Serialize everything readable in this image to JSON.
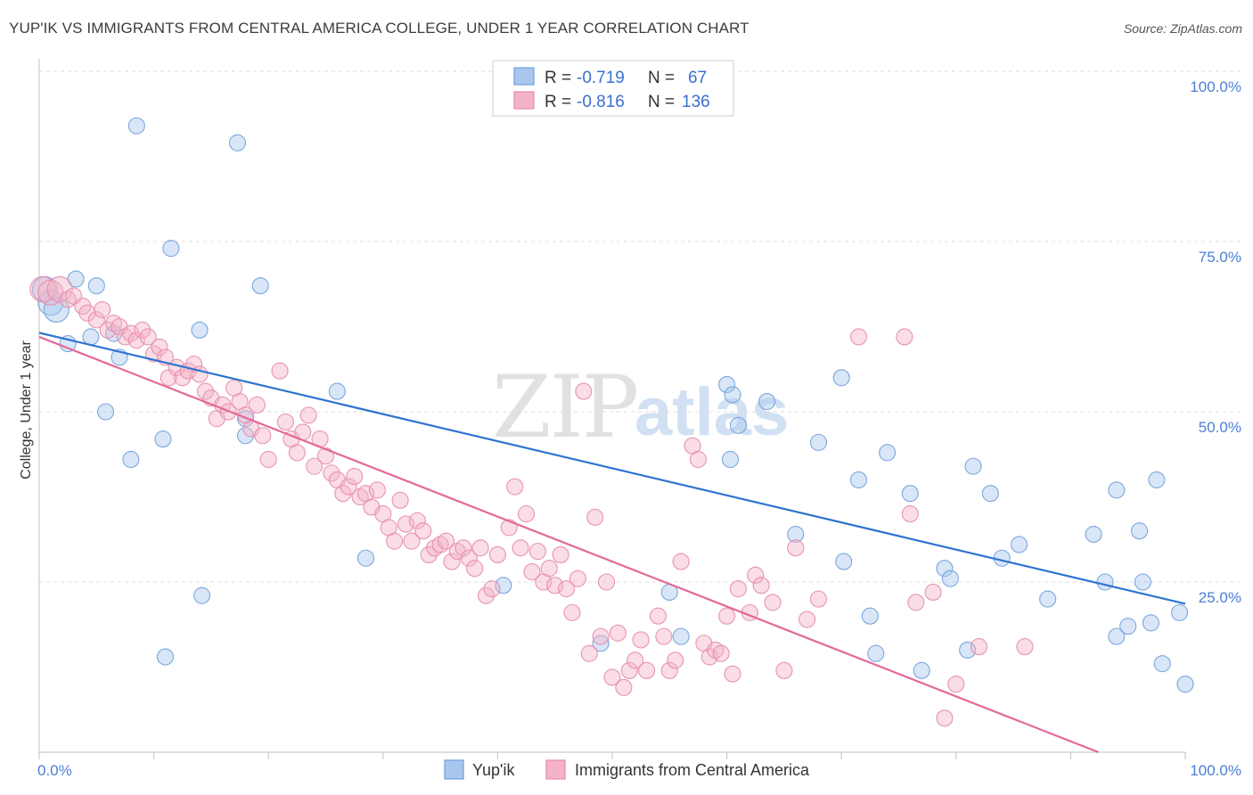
{
  "header": {
    "title": "YUP'IK VS IMMIGRANTS FROM CENTRAL AMERICA COLLEGE, UNDER 1 YEAR CORRELATION CHART",
    "source": "Source: ZipAtlas.com"
  },
  "watermark": {
    "part1": "ZIP",
    "part2": "atlas"
  },
  "colors": {
    "blue_fill": "#a9c7ee",
    "blue_stroke": "#6f9fd9",
    "blue_line": "#2f74d0",
    "pink_fill": "#f5b3c8",
    "pink_stroke": "#e58aa9",
    "pink_line": "#e3689a",
    "grid": "#dddddd",
    "axis_text": "#4a7fd4"
  },
  "legend": {
    "rows": [
      {
        "r_label": "R =",
        "r_value": "-0.719",
        "n_label": "N =",
        "n_value": "67"
      },
      {
        "r_label": "R =",
        "r_value": "-0.816",
        "n_label": "N =",
        "n_value": "136"
      }
    ]
  },
  "chart_data": {
    "type": "scatter",
    "ylabel": "College, Under 1 year",
    "xlim": [
      0,
      100
    ],
    "ylim": [
      0,
      100
    ],
    "y_ticks": [
      {
        "value": 100,
        "label": "100.0%"
      },
      {
        "value": 75,
        "label": "75.0%"
      },
      {
        "value": 50,
        "label": "50.0%"
      },
      {
        "value": 25,
        "label": "25.0%"
      }
    ],
    "x_tick_labels": [
      {
        "value": 0,
        "label": "0.0%"
      },
      {
        "value": 100,
        "label": "100.0%"
      }
    ],
    "x_minor_ticks": [
      0,
      10,
      20,
      30,
      40,
      50,
      60,
      70,
      80,
      90,
      100
    ],
    "legend_position": "bottom",
    "series": [
      {
        "name": "Yup'ik",
        "color": "#a9c7ee",
        "trend": {
          "x": [
            0,
            100
          ],
          "y": [
            61.6,
            21.8
          ]
        },
        "points": [
          [
            0.5,
            68
          ],
          [
            1,
            66
          ],
          [
            3.2,
            69.5
          ],
          [
            5,
            68.5
          ],
          [
            2.5,
            60
          ],
          [
            1.5,
            65
          ],
          [
            4.5,
            61
          ],
          [
            6.5,
            61.5
          ],
          [
            8.5,
            92
          ],
          [
            7,
            58
          ],
          [
            5.8,
            50
          ],
          [
            8,
            43
          ],
          [
            10.8,
            46
          ],
          [
            11.5,
            74
          ],
          [
            11,
            14
          ],
          [
            14,
            62
          ],
          [
            14.2,
            23
          ],
          [
            17.3,
            89.5
          ],
          [
            18,
            49
          ],
          [
            18,
            46.5
          ],
          [
            19.3,
            68.5
          ],
          [
            26,
            53
          ],
          [
            28.5,
            28.5
          ],
          [
            40.5,
            24.5
          ],
          [
            49,
            16
          ],
          [
            55,
            23.5
          ],
          [
            56,
            17
          ],
          [
            60,
            54
          ],
          [
            60.3,
            43
          ],
          [
            60.5,
            52.5
          ],
          [
            61,
            48
          ],
          [
            63.5,
            51.5
          ],
          [
            66,
            32
          ],
          [
            68,
            45.5
          ],
          [
            70,
            55
          ],
          [
            70.2,
            28
          ],
          [
            71.5,
            40
          ],
          [
            72.5,
            20
          ],
          [
            73,
            14.5
          ],
          [
            74,
            44
          ],
          [
            76,
            38
          ],
          [
            77,
            12
          ],
          [
            79,
            27
          ],
          [
            79.5,
            25.5
          ],
          [
            81,
            15
          ],
          [
            81.5,
            42
          ],
          [
            83,
            38
          ],
          [
            84,
            28.5
          ],
          [
            85.5,
            30.5
          ],
          [
            88,
            22.5
          ],
          [
            92,
            32
          ],
          [
            93,
            25
          ],
          [
            94,
            38.5
          ],
          [
            94,
            17
          ],
          [
            95,
            18.5
          ],
          [
            96,
            32.5
          ],
          [
            96.3,
            25
          ],
          [
            97,
            19
          ],
          [
            97.5,
            40
          ],
          [
            98,
            13
          ],
          [
            99.5,
            20.5
          ],
          [
            100,
            10
          ]
        ]
      },
      {
        "name": "Immigrants from Central America",
        "color": "#f5b3c8",
        "trend": {
          "x": [
            0,
            100
          ],
          "y": [
            61.0,
            -5.0
          ]
        },
        "points": [
          [
            0.3,
            68
          ],
          [
            1,
            67.5
          ],
          [
            1.8,
            68
          ],
          [
            2.5,
            66.5
          ],
          [
            3,
            67
          ],
          [
            3.8,
            65.5
          ],
          [
            4.2,
            64.5
          ],
          [
            5,
            63.5
          ],
          [
            5.5,
            65
          ],
          [
            6,
            62
          ],
          [
            6.5,
            63
          ],
          [
            7,
            62.5
          ],
          [
            7.5,
            61
          ],
          [
            8,
            61.5
          ],
          [
            8.5,
            60.5
          ],
          [
            9,
            62
          ],
          [
            9.5,
            61
          ],
          [
            10,
            58.5
          ],
          [
            10.5,
            59.5
          ],
          [
            11,
            58
          ],
          [
            11.3,
            55
          ],
          [
            12,
            56.5
          ],
          [
            12.5,
            55
          ],
          [
            13,
            56
          ],
          [
            13.5,
            57
          ],
          [
            14,
            55.5
          ],
          [
            14.5,
            53
          ],
          [
            15,
            52
          ],
          [
            15.5,
            49
          ],
          [
            16,
            51
          ],
          [
            16.5,
            50
          ],
          [
            17,
            53.5
          ],
          [
            17.5,
            51.5
          ],
          [
            18,
            49.5
          ],
          [
            18.5,
            47.5
          ],
          [
            19,
            51
          ],
          [
            19.5,
            46.5
          ],
          [
            20,
            43
          ],
          [
            21,
            56
          ],
          [
            21.5,
            48.5
          ],
          [
            22,
            46
          ],
          [
            22.5,
            44
          ],
          [
            23,
            47
          ],
          [
            23.5,
            49.5
          ],
          [
            24,
            42
          ],
          [
            24.5,
            46
          ],
          [
            25,
            43.5
          ],
          [
            25.5,
            41
          ],
          [
            26,
            40
          ],
          [
            26.5,
            38
          ],
          [
            27,
            39
          ],
          [
            27.5,
            40.5
          ],
          [
            28,
            37.5
          ],
          [
            28.5,
            38
          ],
          [
            29,
            36
          ],
          [
            29.5,
            38.5
          ],
          [
            30,
            35
          ],
          [
            30.5,
            33
          ],
          [
            31,
            31
          ],
          [
            31.5,
            37
          ],
          [
            32,
            33.5
          ],
          [
            32.5,
            31
          ],
          [
            33,
            34
          ],
          [
            33.5,
            32.5
          ],
          [
            34,
            29
          ],
          [
            34.5,
            30
          ],
          [
            35,
            30.5
          ],
          [
            35.5,
            31
          ],
          [
            36,
            28
          ],
          [
            36.5,
            29.5
          ],
          [
            37,
            30
          ],
          [
            37.5,
            28.5
          ],
          [
            38,
            27
          ],
          [
            38.5,
            30
          ],
          [
            39,
            23
          ],
          [
            39.5,
            24
          ],
          [
            40,
            29
          ],
          [
            41,
            33
          ],
          [
            41.5,
            39
          ],
          [
            42,
            30
          ],
          [
            42.5,
            35
          ],
          [
            43,
            26.5
          ],
          [
            43.5,
            29.5
          ],
          [
            44,
            25
          ],
          [
            44.5,
            27
          ],
          [
            45,
            24.5
          ],
          [
            45.5,
            29
          ],
          [
            46,
            24
          ],
          [
            46.5,
            20.5
          ],
          [
            47,
            25.5
          ],
          [
            47.5,
            53
          ],
          [
            48,
            14.5
          ],
          [
            48.5,
            34.5
          ],
          [
            49,
            17
          ],
          [
            49.5,
            25
          ],
          [
            50,
            11
          ],
          [
            50.5,
            17.5
          ],
          [
            51,
            9.5
          ],
          [
            51.5,
            12
          ],
          [
            52,
            13.5
          ],
          [
            52.5,
            16.5
          ],
          [
            53,
            12
          ],
          [
            54,
            20
          ],
          [
            54.5,
            17
          ],
          [
            55,
            12
          ],
          [
            55.5,
            13.5
          ],
          [
            56,
            28
          ],
          [
            57,
            45
          ],
          [
            57.5,
            43
          ],
          [
            58,
            16
          ],
          [
            58.5,
            14
          ],
          [
            59,
            15
          ],
          [
            59.5,
            14.5
          ],
          [
            60,
            20
          ],
          [
            60.5,
            11.5
          ],
          [
            61,
            24
          ],
          [
            62,
            20.5
          ],
          [
            62.5,
            26
          ],
          [
            63,
            24.5
          ],
          [
            64,
            22
          ],
          [
            65,
            12
          ],
          [
            66,
            30
          ],
          [
            67,
            19.5
          ],
          [
            68,
            22.5
          ],
          [
            71.5,
            61
          ],
          [
            75.5,
            61
          ],
          [
            76,
            35
          ],
          [
            76.5,
            22
          ],
          [
            78,
            23.5
          ],
          [
            79,
            5
          ],
          [
            80,
            10
          ],
          [
            82,
            15.5
          ],
          [
            86,
            15.5
          ]
        ]
      }
    ]
  }
}
